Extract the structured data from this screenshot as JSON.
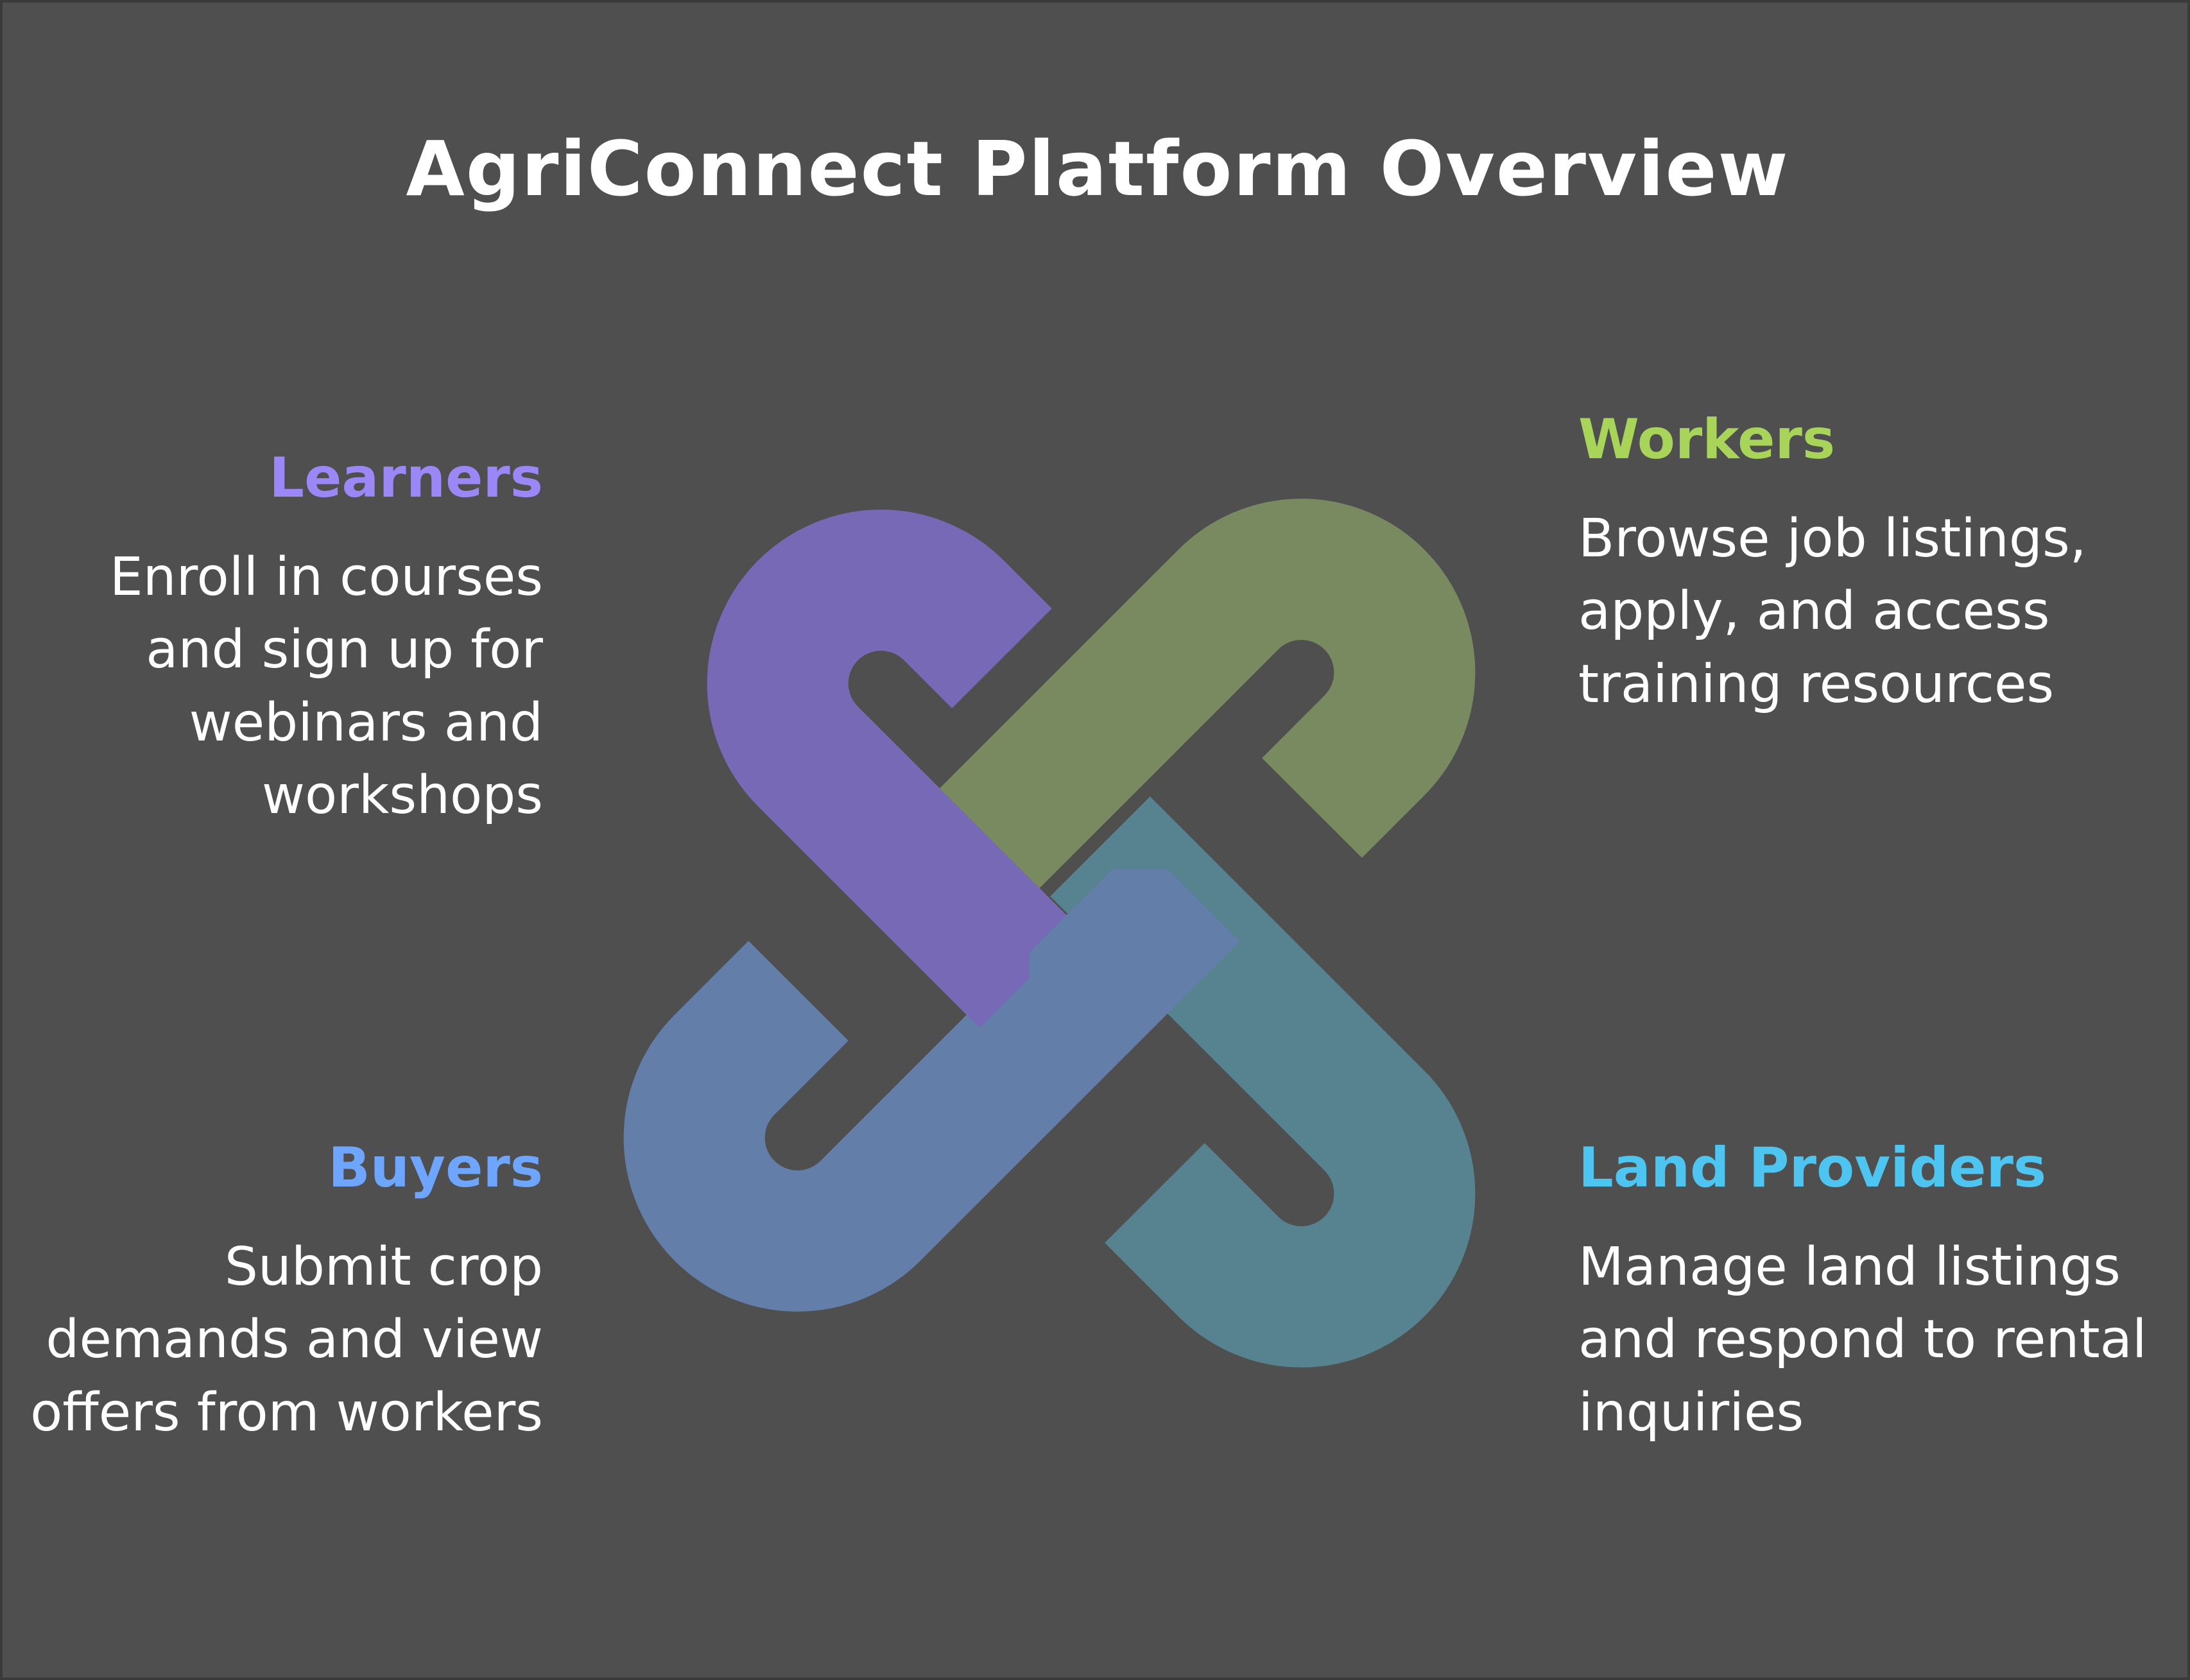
{
  "title": "AgriConnect Platform Overview",
  "colors": {
    "background": "#4f4f4f",
    "learners": "#7769b5",
    "workers": "#7a8a60",
    "buyers": "#637ea8",
    "land_providers": "#57828f",
    "learners_label": "#9b87f5",
    "workers_label": "#a8d45a",
    "buyers_label": "#6ea6ff",
    "land_providers_label": "#4ec4f0"
  },
  "segments": {
    "learners": {
      "title": "Learners",
      "description": "Enroll in courses and sign up for webinars and workshops"
    },
    "workers": {
      "title": "Workers",
      "description": "Browse job listings, apply, and access training resources"
    },
    "buyers": {
      "title": "Buyers",
      "description": "Submit crop demands and view offers from workers"
    },
    "land_providers": {
      "title": "Land Providers",
      "description": "Manage land listings and respond to rental inquiries"
    }
  }
}
